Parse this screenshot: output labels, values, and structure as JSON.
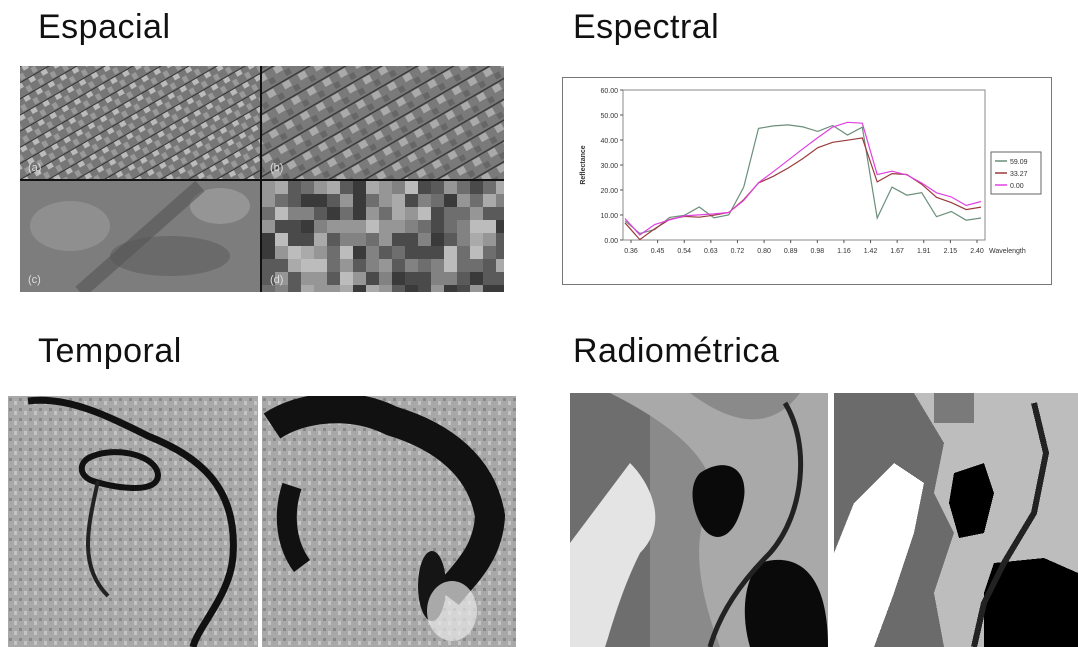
{
  "titles": {
    "espacial": "Espacial",
    "espectral": "Espectral",
    "temporal": "Temporal",
    "radiometrica": "Radiométrica"
  },
  "spatial_labels": [
    "(a)",
    "(b)",
    "(c)",
    "(d)"
  ],
  "chart_data": {
    "type": "line",
    "xlabel": "Wavelength",
    "ylabel": "Reflectance",
    "ylim": [
      0,
      60
    ],
    "yticks": [
      "0.00",
      "10.00",
      "20.00",
      "30.00",
      "40.00",
      "50.00",
      "60.00"
    ],
    "xticks": [
      "0.36",
      "0.45",
      "0.54",
      "0.63",
      "0.72",
      "0.80",
      "0.89",
      "0.98",
      "1.16",
      "1.42",
      "1.67",
      "1.91",
      "2.15",
      "2.40"
    ],
    "legend_position": "right",
    "series": [
      {
        "name": "59.09",
        "color": "#6b8f7a",
        "values": [
          8,
          2,
          5,
          8,
          11,
          12,
          10,
          9,
          22,
          44,
          46,
          46,
          45,
          44,
          45,
          43,
          44,
          10,
          20,
          19,
          18,
          10,
          11,
          8,
          9
        ]
      },
      {
        "name": "33.27",
        "color": "#9a3b3b",
        "values": [
          8,
          1,
          4,
          7,
          9,
          10,
          11,
          11,
          15,
          22,
          26,
          30,
          33,
          36,
          38,
          40,
          42,
          24,
          26,
          25,
          22,
          18,
          16,
          12,
          12
        ]
      },
      {
        "name": "0.00",
        "color": "#e040e0",
        "values": [
          8,
          1,
          5,
          7,
          9,
          10,
          11,
          12,
          17,
          24,
          28,
          32,
          36,
          40,
          44,
          46,
          46,
          26,
          28,
          27,
          24,
          20,
          18,
          14,
          15
        ]
      }
    ]
  }
}
